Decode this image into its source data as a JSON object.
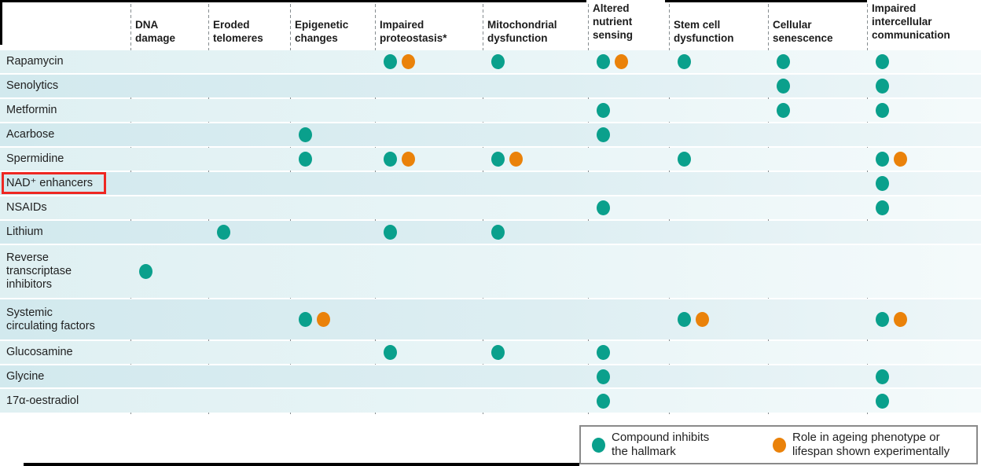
{
  "figure": {
    "colors": {
      "inhibit_dot": "#0aa08c",
      "experimental_dot": "#ea820a",
      "highlight_box": "#ee2722",
      "band_light": "#e4f2f5",
      "band_dark": "#d6eaee"
    },
    "header": {
      "columns": [
        {
          "label": "DNA\ndamage",
          "tall": false
        },
        {
          "label": "Eroded\ntelomeres",
          "tall": false
        },
        {
          "label": "Epigenetic\nchanges",
          "tall": false
        },
        {
          "label": "Impaired\nproteostasis*",
          "tall": false
        },
        {
          "label": "Mitochondrial\ndysfunction",
          "tall": false
        },
        {
          "label": "Altered\nnutrient\nsensing",
          "tall": true
        },
        {
          "label": "Stem cell\ndysfunction",
          "tall": false
        },
        {
          "label": "Cellular\nsenescence",
          "tall": false
        },
        {
          "label": "Impaired\nintercellular\ncommunication",
          "tall": true
        }
      ]
    },
    "rows": [
      {
        "label": "Rapamycin",
        "cells": [
          "",
          "",
          "",
          "TO",
          "T",
          "TO",
          "T",
          "T",
          "T"
        ],
        "highlight": false
      },
      {
        "label": "Senolytics",
        "cells": [
          "",
          "",
          "",
          "",
          "",
          "",
          "",
          "T",
          "T"
        ],
        "highlight": false
      },
      {
        "label": "Metformin",
        "cells": [
          "",
          "",
          "",
          "",
          "",
          "T",
          "",
          "T",
          "T"
        ],
        "highlight": false
      },
      {
        "label": "Acarbose",
        "cells": [
          "",
          "",
          "T",
          "",
          "",
          "T",
          "",
          "",
          ""
        ],
        "highlight": false
      },
      {
        "label": "Spermidine",
        "cells": [
          "",
          "",
          "T",
          "TO",
          "TO",
          "",
          "T",
          "",
          "TO"
        ],
        "highlight": false
      },
      {
        "label": "NAD⁺ enhancers",
        "cells": [
          "",
          "",
          "",
          "",
          "",
          "",
          "",
          "",
          "T"
        ],
        "highlight": true
      },
      {
        "label": "NSAIDs",
        "cells": [
          "",
          "",
          "",
          "",
          "",
          "T",
          "",
          "",
          "T"
        ],
        "highlight": false
      },
      {
        "label": "Lithium",
        "cells": [
          "",
          "T",
          "",
          "T",
          "T",
          "",
          "",
          "",
          ""
        ],
        "highlight": false
      },
      {
        "label": "Reverse\ntranscriptase\ninhibitors",
        "cells": [
          "T",
          "",
          "",
          "",
          "",
          "",
          "",
          "",
          ""
        ],
        "highlight": false
      },
      {
        "label": "Systemic\ncirculating factors",
        "cells": [
          "",
          "",
          "TO",
          "",
          "",
          "",
          "TO",
          "",
          "TO"
        ],
        "highlight": false
      },
      {
        "label": "Glucosamine",
        "cells": [
          "",
          "",
          "",
          "T",
          "T",
          "T",
          "",
          "",
          ""
        ],
        "highlight": false
      },
      {
        "label": "Glycine",
        "cells": [
          "",
          "",
          "",
          "",
          "",
          "T",
          "",
          "",
          "T"
        ],
        "highlight": false
      },
      {
        "label": "17α-oestradiol",
        "cells": [
          "",
          "",
          "",
          "",
          "",
          "T",
          "",
          "",
          "T"
        ],
        "highlight": false
      }
    ],
    "legend": {
      "items": [
        {
          "marker": "T",
          "label": "Compound inhibits\nthe hallmark"
        },
        {
          "marker": "O",
          "label": "Role in ageing phenotype or\nlifespan shown experimentally"
        }
      ]
    }
  },
  "chart_data": {
    "type": "table",
    "columns": [
      "DNA damage",
      "Eroded telomeres",
      "Epigenetic changes",
      "Impaired proteostasis*",
      "Mitochondrial dysfunction",
      "Altered nutrient sensing",
      "Stem cell dysfunction",
      "Cellular senescence",
      "Impaired intercellular communication"
    ],
    "rows": [
      "Rapamycin",
      "Senolytics",
      "Metformin",
      "Acarbose",
      "Spermidine",
      "NAD+ enhancers",
      "NSAIDs",
      "Lithium",
      "Reverse transcriptase inhibitors",
      "Systemic circulating factors",
      "Glucosamine",
      "Glycine",
      "17α-oestradiol"
    ],
    "cell_codes": {
      "T": "Compound inhibits the hallmark",
      "O": "Role in ageing phenotype or lifespan shown experimentally"
    },
    "matrix": [
      [
        "",
        "",
        "",
        "TO",
        "T",
        "TO",
        "T",
        "T",
        "T"
      ],
      [
        "",
        "",
        "",
        "",
        "",
        "",
        "",
        "T",
        "T"
      ],
      [
        "",
        "",
        "",
        "",
        "",
        "T",
        "",
        "T",
        "T"
      ],
      [
        "",
        "",
        "T",
        "",
        "",
        "T",
        "",
        "",
        ""
      ],
      [
        "",
        "",
        "T",
        "TO",
        "TO",
        "",
        "T",
        "",
        "TO"
      ],
      [
        "",
        "",
        "",
        "",
        "",
        "",
        "",
        "",
        "T"
      ],
      [
        "",
        "",
        "",
        "",
        "",
        "T",
        "",
        "",
        "T"
      ],
      [
        "",
        "T",
        "",
        "T",
        "T",
        "",
        "",
        "",
        ""
      ],
      [
        "T",
        "",
        "",
        "",
        "",
        "",
        "",
        "",
        ""
      ],
      [
        "",
        "",
        "TO",
        "",
        "",
        "",
        "TO",
        "",
        "TO"
      ],
      [
        "",
        "",
        "",
        "T",
        "T",
        "T",
        "",
        "",
        ""
      ],
      [
        "",
        "",
        "",
        "",
        "",
        "T",
        "",
        "",
        "T"
      ],
      [
        "",
        "",
        "",
        "",
        "",
        "T",
        "",
        "",
        "T"
      ]
    ],
    "highlighted_row": "NAD+ enhancers",
    "legend_position": "bottom-right",
    "grid": "dashed-vertical"
  }
}
